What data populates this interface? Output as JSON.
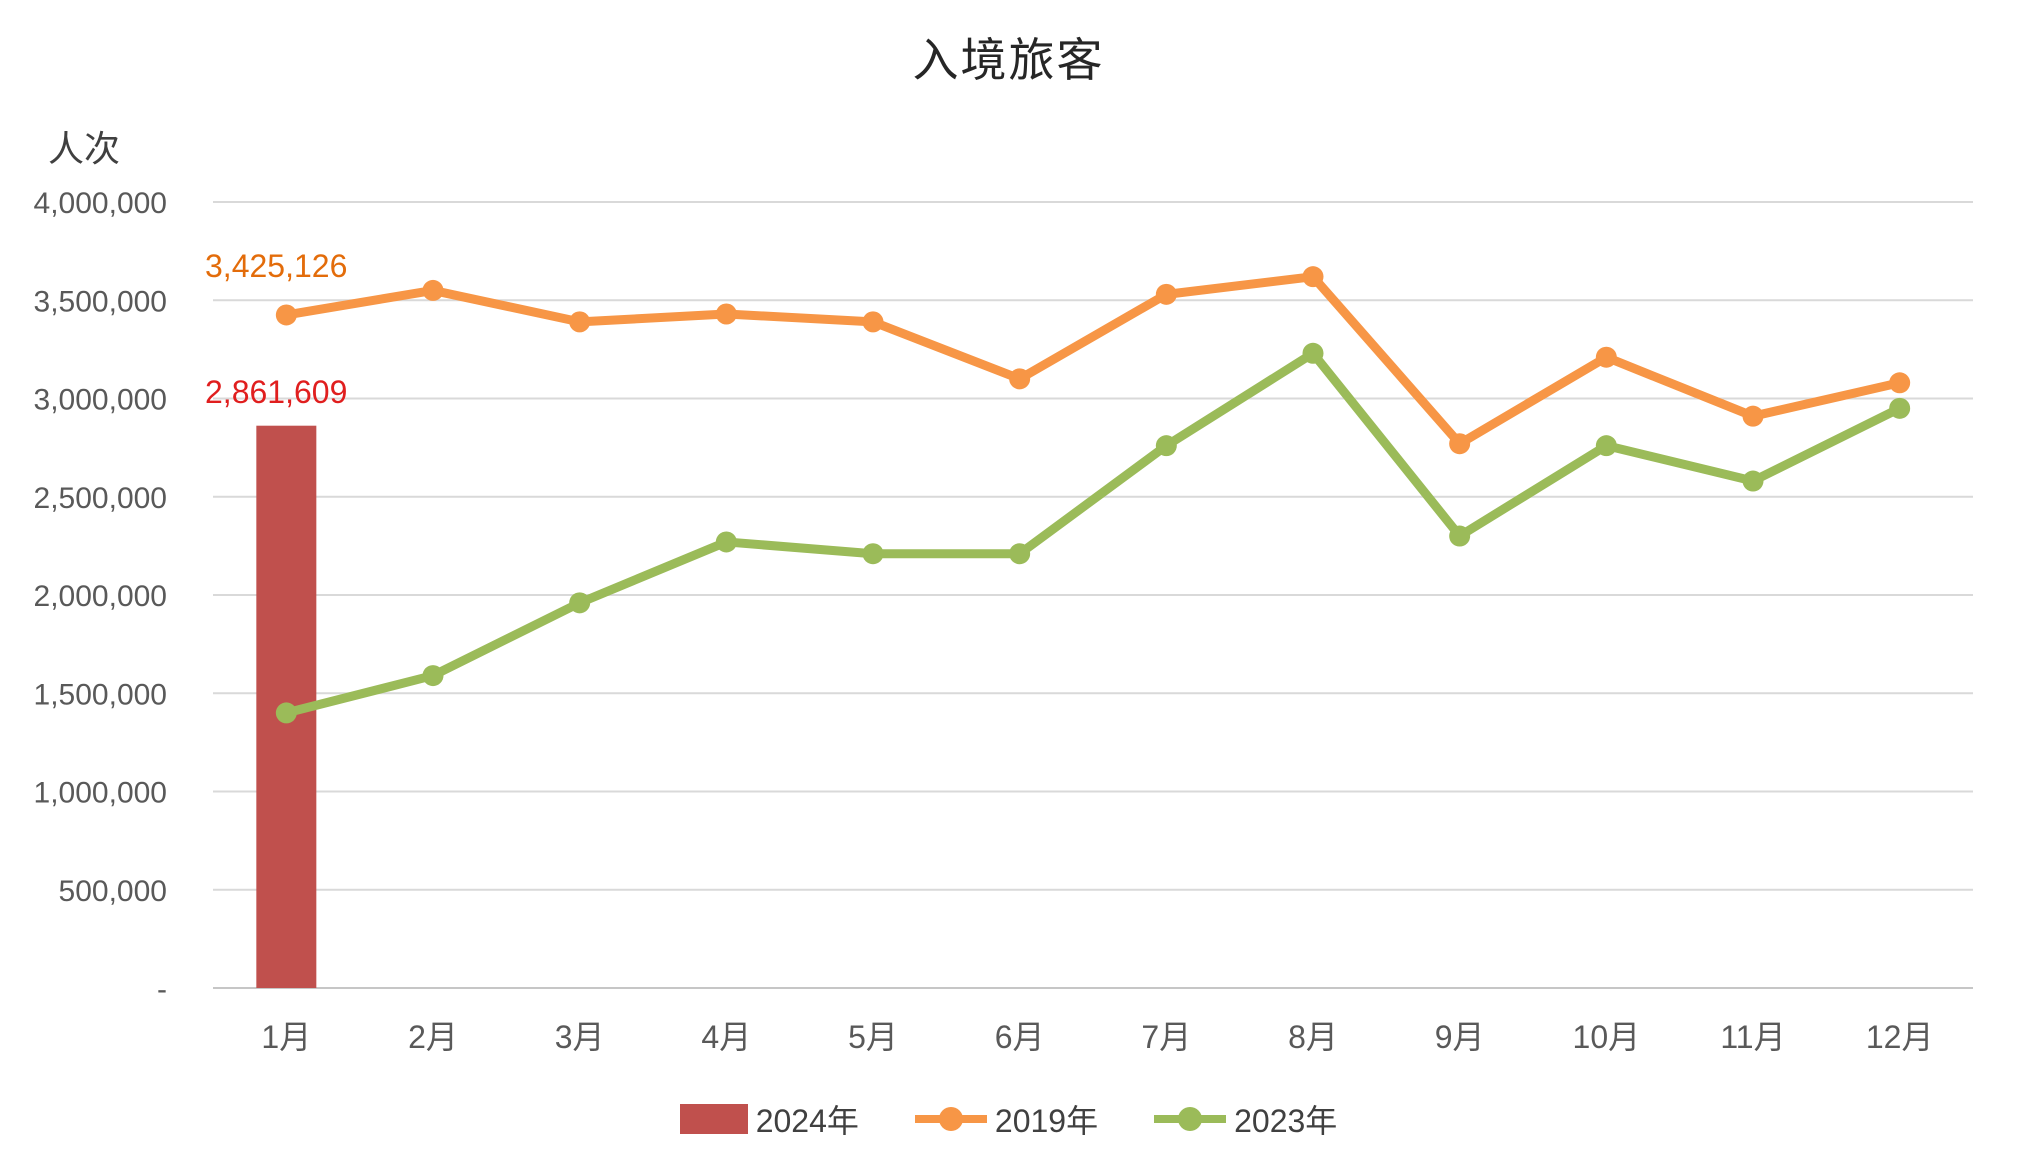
{
  "chart_data": {
    "type": "combo",
    "title": "入境旅客",
    "y_axis_title": "人次",
    "categories": [
      "1月",
      "2月",
      "3月",
      "4月",
      "5月",
      "6月",
      "7月",
      "8月",
      "9月",
      "10月",
      "11月",
      "12月"
    ],
    "y_ticks": [
      {
        "label": "4,000,000",
        "value": 4000000
      },
      {
        "label": "3,500,000",
        "value": 3500000
      },
      {
        "label": "3,000,000",
        "value": 3000000
      },
      {
        "label": "2,500,000",
        "value": 2500000
      },
      {
        "label": "2,000,000",
        "value": 2000000
      },
      {
        "label": "1,500,000",
        "value": 1500000
      },
      {
        "label": "1,000,000",
        "value": 1000000
      },
      {
        "label": "500,000",
        "value": 500000
      },
      {
        "label": "-",
        "value": 0
      }
    ],
    "ylim": [
      0,
      4000000
    ],
    "grid": true,
    "grid_color": "#D9D9D9",
    "axis_line_color": "#C6C6C6",
    "tick_text_color": "#595959",
    "legend_position": "bottom",
    "series": [
      {
        "name": "2024年",
        "type": "bar",
        "color": "#C0504D",
        "values": [
          2861609,
          null,
          null,
          null,
          null,
          null,
          null,
          null,
          null,
          null,
          null,
          null
        ]
      },
      {
        "name": "2019年",
        "type": "line",
        "color": "#F79646",
        "values": [
          3425126,
          3550000,
          3390000,
          3430000,
          3390000,
          3100000,
          3530000,
          3620000,
          2770000,
          3210000,
          2910000,
          3080000
        ]
      },
      {
        "name": "2023年",
        "type": "line",
        "color": "#9BBB59",
        "values": [
          1400000,
          1590000,
          1960000,
          2270000,
          2210000,
          2210000,
          2760000,
          3230000,
          2300000,
          2760000,
          2580000,
          2950000
        ]
      }
    ],
    "data_labels": [
      {
        "text": "3,425,126",
        "color": "#E36C0A",
        "series": "2019年",
        "category": "1月"
      },
      {
        "text": "2,861,609",
        "color": "#E01E1E",
        "series": "2024年",
        "category": "1月"
      }
    ]
  }
}
